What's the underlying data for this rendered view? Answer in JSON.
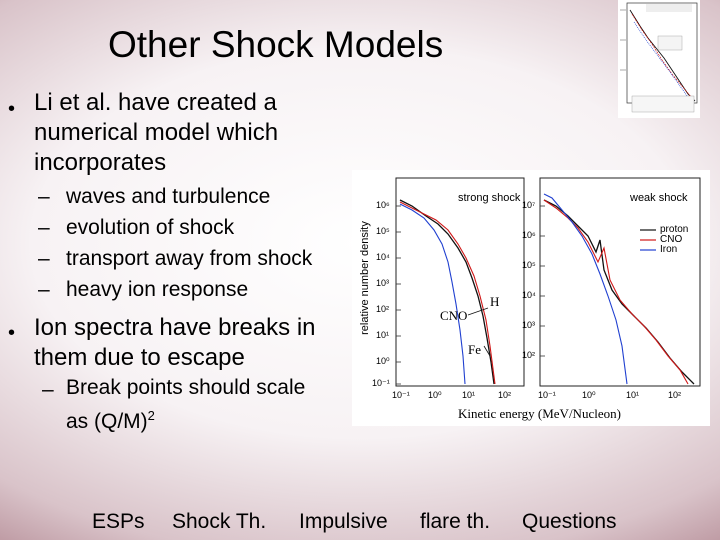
{
  "slide": {
    "title": "Other Shock Models",
    "bullets": [
      {
        "lines": [
          "Li et al. have created a",
          "numerical model which",
          "incorporates"
        ],
        "sub": [
          "waves and turbulence",
          "evolution of shock",
          "transport away from shock",
          "heavy ion response"
        ]
      },
      {
        "lines": [
          "Ion spectra have breaks in",
          "them due to escape"
        ],
        "sub_prefix": "Break points should scale",
        "sub_line2": "as (Q/M)",
        "sup": "2"
      }
    ],
    "dash": "–",
    "bullet_char": "•"
  },
  "figure": {
    "left_panel_label": "strong shock",
    "right_panel_label": "weak shock",
    "ylabel": "relative number density",
    "xlabel": "Kinetic energy (MeV/Nucleon)",
    "legend": [
      "proton",
      "CNO",
      "Iron"
    ],
    "annotations": {
      "cno": "CNO",
      "h": "H",
      "fe": "Fe"
    },
    "yticks_left": [
      "10⁶",
      "10⁵",
      "10⁴",
      "10³",
      "10²",
      "10¹",
      "10⁰",
      "10⁻¹"
    ],
    "yticks_right": [
      "10⁷",
      "10⁶",
      "10⁵",
      "10⁴",
      "10³",
      "10²"
    ],
    "xticks": [
      "10⁻¹",
      "10⁰",
      "10¹",
      "10²"
    ],
    "colors": {
      "proton": "#111111",
      "cno": "#d01818",
      "iron": "#2040d0"
    }
  },
  "footer": {
    "links": [
      "ESPs",
      "Shock Th.",
      "Impulsive",
      "flare th.",
      "Questions"
    ]
  }
}
